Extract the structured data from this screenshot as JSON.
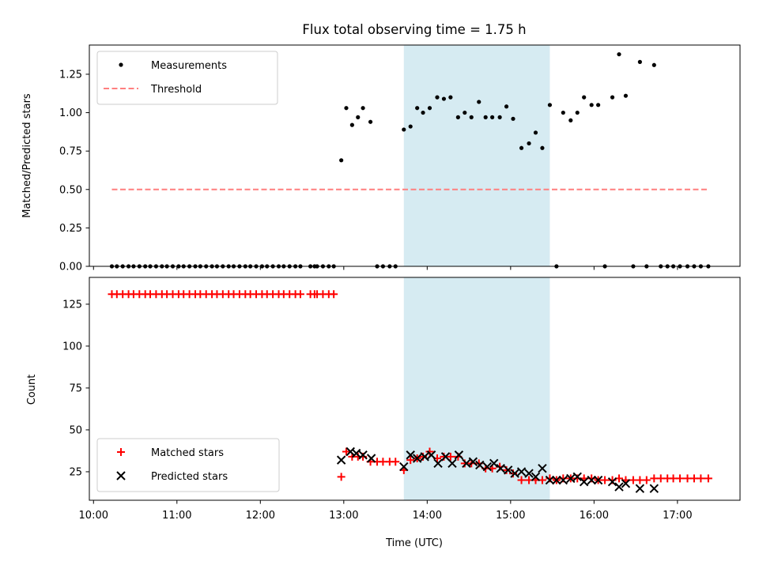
{
  "figure": {
    "title": "Flux total observing time = 1.75 h"
  },
  "chart_data": [
    {
      "type": "scatter",
      "panel": "top",
      "title": "Flux total observing time = 1.75 h",
      "xlabel": "",
      "ylabel": "Matched/Predicted stars",
      "xlim": [
        9.95,
        17.75
      ],
      "ylim": [
        0,
        1.44
      ],
      "yticks": [
        0.0,
        0.25,
        0.5,
        0.75,
        1.0,
        1.25
      ],
      "ytick_labels": [
        "0.00",
        "0.25",
        "0.50",
        "0.75",
        "1.00",
        "1.25"
      ],
      "x_unit": "hours UTC",
      "shaded_region": {
        "x": [
          13.72,
          15.47
        ],
        "color": "#add8e6"
      },
      "legend": {
        "placement": "top-left",
        "entries": [
          "Measurements",
          "Threshold"
        ]
      },
      "series": [
        {
          "name": "Measurements",
          "marker": "dot",
          "color": "#000000",
          "x": [
            10.22,
            10.28,
            10.35,
            10.42,
            10.48,
            10.55,
            10.62,
            10.68,
            10.75,
            10.82,
            10.88,
            10.95,
            11.02,
            11.08,
            11.15,
            11.22,
            11.28,
            11.35,
            11.42,
            11.48,
            11.55,
            11.62,
            11.68,
            11.75,
            11.82,
            11.88,
            11.95,
            12.02,
            12.08,
            12.15,
            12.22,
            12.28,
            12.35,
            12.42,
            12.48,
            12.6,
            12.65,
            12.68,
            12.75,
            12.82,
            12.88,
            12.97,
            13.03,
            13.1,
            13.17,
            13.23,
            13.32,
            13.4,
            13.47,
            13.55,
            13.62,
            13.72,
            13.8,
            13.88,
            13.95,
            14.03,
            14.12,
            14.2,
            14.28,
            14.37,
            14.45,
            14.53,
            14.62,
            14.7,
            14.78,
            14.87,
            14.95,
            15.03,
            15.13,
            15.22,
            15.3,
            15.38,
            15.47,
            15.55,
            15.63,
            15.72,
            15.8,
            15.88,
            15.97,
            16.05,
            16.13,
            16.22,
            16.3,
            16.38,
            16.47,
            16.55,
            16.63,
            16.72,
            16.8,
            16.88,
            16.95,
            17.03,
            17.12,
            17.2,
            17.28,
            17.37
          ],
          "y": [
            0,
            0,
            0,
            0,
            0,
            0,
            0,
            0,
            0,
            0,
            0,
            0,
            0,
            0,
            0,
            0,
            0,
            0,
            0,
            0,
            0,
            0,
            0,
            0,
            0,
            0,
            0,
            0,
            0,
            0,
            0,
            0,
            0,
            0,
            0,
            0,
            0,
            0,
            0,
            0,
            0,
            0.69,
            1.03,
            0.92,
            0.97,
            1.03,
            0.94,
            0,
            0,
            0,
            0,
            0.89,
            0.91,
            1.03,
            1.0,
            1.03,
            1.1,
            1.09,
            1.1,
            0.97,
            1.0,
            0.97,
            1.07,
            0.97,
            0.97,
            0.97,
            1.04,
            0.96,
            0.77,
            0.8,
            0.87,
            0.77,
            1.05,
            0,
            1.0,
            0.95,
            1.0,
            1.1,
            1.05,
            1.05,
            0,
            1.1,
            1.38,
            1.11,
            0,
            1.33,
            0,
            1.31,
            0,
            0,
            0,
            0,
            0,
            0,
            0,
            0
          ]
        },
        {
          "name": "Threshold",
          "style": "dashed",
          "color": "#ff7f7f",
          "x": [
            10.22,
            17.37
          ],
          "y": [
            0.5,
            0.5
          ]
        }
      ]
    },
    {
      "type": "scatter",
      "panel": "bottom",
      "xlabel": "Time (UTC)",
      "ylabel": "Count",
      "xlim": [
        9.95,
        17.75
      ],
      "ylim": [
        8,
        141
      ],
      "yticks": [
        25,
        50,
        75,
        100,
        125
      ],
      "ytick_labels": [
        "25",
        "50",
        "75",
        "100",
        "125"
      ],
      "xticks": [
        10,
        11,
        12,
        13,
        14,
        15,
        16,
        17
      ],
      "xtick_labels": [
        "10:00",
        "11:00",
        "12:00",
        "13:00",
        "14:00",
        "15:00",
        "16:00",
        "17:00"
      ],
      "shaded_region": {
        "x": [
          13.72,
          15.47
        ],
        "color": "#add8e6"
      },
      "legend": {
        "placement": "bottom-left",
        "entries": [
          "Matched stars",
          "Predicted stars"
        ]
      },
      "series": [
        {
          "name": "Matched stars",
          "marker": "plus",
          "color": "#ff0000",
          "x": [
            10.22,
            10.28,
            10.35,
            10.42,
            10.48,
            10.55,
            10.62,
            10.68,
            10.75,
            10.82,
            10.88,
            10.95,
            11.02,
            11.08,
            11.15,
            11.22,
            11.28,
            11.35,
            11.42,
            11.48,
            11.55,
            11.62,
            11.68,
            11.75,
            11.82,
            11.88,
            11.95,
            12.02,
            12.08,
            12.15,
            12.22,
            12.28,
            12.35,
            12.42,
            12.48,
            12.6,
            12.65,
            12.68,
            12.75,
            12.82,
            12.88,
            12.97,
            13.03,
            13.1,
            13.17,
            13.23,
            13.32,
            13.4,
            13.47,
            13.55,
            13.62,
            13.72,
            13.8,
            13.88,
            13.95,
            14.03,
            14.12,
            14.2,
            14.28,
            14.37,
            14.45,
            14.53,
            14.62,
            14.7,
            14.78,
            14.87,
            14.95,
            15.03,
            15.13,
            15.22,
            15.3,
            15.38,
            15.47,
            15.55,
            15.63,
            15.72,
            15.8,
            15.88,
            15.97,
            16.05,
            16.13,
            16.22,
            16.3,
            16.38,
            16.47,
            16.55,
            16.63,
            16.72,
            16.8,
            16.88,
            16.95,
            17.03,
            17.12,
            17.2,
            17.28,
            17.37
          ],
          "y": [
            131,
            131,
            131,
            131,
            131,
            131,
            131,
            131,
            131,
            131,
            131,
            131,
            131,
            131,
            131,
            131,
            131,
            131,
            131,
            131,
            131,
            131,
            131,
            131,
            131,
            131,
            131,
            131,
            131,
            131,
            131,
            131,
            131,
            131,
            131,
            131,
            131,
            131,
            131,
            131,
            131,
            22,
            37,
            34,
            34,
            34,
            31,
            31,
            31,
            31,
            31,
            26,
            32,
            33,
            34,
            37,
            33,
            34,
            34,
            34,
            30,
            30,
            30,
            27,
            27,
            28,
            26,
            24,
            20,
            20,
            20,
            20,
            21,
            20,
            21,
            21,
            21,
            21,
            21,
            20,
            20,
            20,
            21,
            20,
            20,
            20,
            20,
            21,
            21,
            21,
            21,
            21,
            21,
            21,
            21,
            21
          ]
        },
        {
          "name": "Predicted stars",
          "marker": "x",
          "color": "#000000",
          "x": [
            12.97,
            13.08,
            13.15,
            13.23,
            13.33,
            13.72,
            13.8,
            13.88,
            13.97,
            14.05,
            14.13,
            14.22,
            14.3,
            14.38,
            14.47,
            14.55,
            14.63,
            14.72,
            14.8,
            14.88,
            14.97,
            15.05,
            15.13,
            15.22,
            15.3,
            15.38,
            15.47,
            15.55,
            15.63,
            15.72,
            15.8,
            15.88,
            15.97,
            16.05,
            16.22,
            16.3,
            16.38,
            16.55,
            16.72
          ],
          "y": [
            32,
            37,
            36,
            35,
            33,
            28,
            35,
            33,
            34,
            35,
            30,
            34,
            30,
            35,
            30,
            31,
            29,
            28,
            30,
            27,
            26,
            24,
            25,
            24,
            22,
            27,
            20,
            20,
            20,
            21,
            22,
            19,
            20,
            20,
            19,
            16,
            18,
            15,
            15
          ]
        }
      ]
    }
  ]
}
